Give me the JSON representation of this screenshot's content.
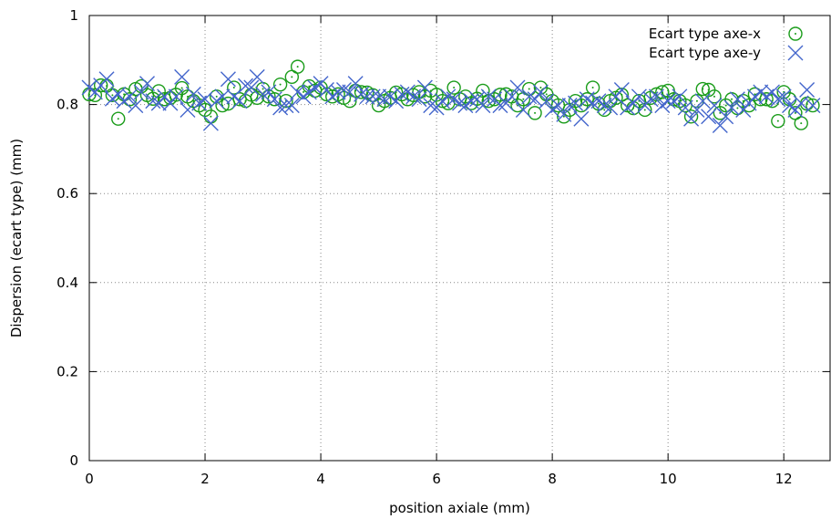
{
  "chart_data": {
    "type": "scatter",
    "xlabel": "position axiale (mm)",
    "ylabel": "Dispersion (ecart type) (mm)",
    "xlim": [
      0,
      12.8
    ],
    "ylim": [
      0,
      1
    ],
    "xticks": [
      "0",
      "2",
      "4",
      "6",
      "8",
      "10",
      "12"
    ],
    "yticks": [
      "0",
      "0.2",
      "0.4",
      "0.6",
      "0.8",
      "1"
    ],
    "grid": true,
    "legend_position": "top-right",
    "series": [
      {
        "name": "Ecart type axe-x",
        "marker": "circle-dot",
        "color": "#1a9c1a",
        "x": [
          0.0,
          0.1,
          0.2,
          0.3,
          0.4,
          0.5,
          0.6,
          0.7,
          0.8,
          0.9,
          1.0,
          1.1,
          1.2,
          1.3,
          1.4,
          1.5,
          1.6,
          1.7,
          1.8,
          1.9,
          2.0,
          2.1,
          2.2,
          2.3,
          2.4,
          2.5,
          2.6,
          2.7,
          2.8,
          2.9,
          3.0,
          3.1,
          3.2,
          3.3,
          3.4,
          3.5,
          3.6,
          3.7,
          3.8,
          3.9,
          4.0,
          4.1,
          4.2,
          4.3,
          4.4,
          4.5,
          4.6,
          4.7,
          4.8,
          4.9,
          5.0,
          5.1,
          5.2,
          5.3,
          5.4,
          5.5,
          5.6,
          5.7,
          5.8,
          5.9,
          6.0,
          6.1,
          6.2,
          6.3,
          6.4,
          6.5,
          6.6,
          6.7,
          6.8,
          6.9,
          7.0,
          7.1,
          7.2,
          7.3,
          7.4,
          7.5,
          7.6,
          7.7,
          7.8,
          7.9,
          8.0,
          8.1,
          8.2,
          8.3,
          8.4,
          8.5,
          8.6,
          8.7,
          8.8,
          8.9,
          9.0,
          9.1,
          9.2,
          9.3,
          9.4,
          9.5,
          9.6,
          9.7,
          9.8,
          9.9,
          10.0,
          10.1,
          10.2,
          10.3,
          10.4,
          10.5,
          10.6,
          10.7,
          10.8,
          10.9,
          11.0,
          11.1,
          11.2,
          11.3,
          11.4,
          11.5,
          11.6,
          11.7,
          11.8,
          11.9,
          12.0,
          12.1,
          12.2,
          12.3,
          12.4,
          12.5
        ],
        "y": [
          0.823,
          0.821,
          0.843,
          0.842,
          0.821,
          0.768,
          0.823,
          0.812,
          0.835,
          0.841,
          0.821,
          0.813,
          0.83,
          0.812,
          0.815,
          0.822,
          0.837,
          0.818,
          0.808,
          0.798,
          0.788,
          0.773,
          0.818,
          0.798,
          0.802,
          0.838,
          0.812,
          0.808,
          0.822,
          0.815,
          0.835,
          0.818,
          0.812,
          0.845,
          0.808,
          0.862,
          0.885,
          0.828,
          0.841,
          0.831,
          0.838,
          0.823,
          0.818,
          0.823,
          0.815,
          0.808,
          0.831,
          0.828,
          0.827,
          0.821,
          0.798,
          0.808,
          0.815,
          0.827,
          0.823,
          0.812,
          0.821,
          0.828,
          0.818,
          0.831,
          0.822,
          0.808,
          0.803,
          0.838,
          0.812,
          0.818,
          0.803,
          0.813,
          0.831,
          0.808,
          0.812,
          0.822,
          0.823,
          0.818,
          0.798,
          0.812,
          0.835,
          0.781,
          0.838,
          0.823,
          0.808,
          0.798,
          0.773,
          0.788,
          0.808,
          0.798,
          0.812,
          0.838,
          0.802,
          0.788,
          0.808,
          0.815,
          0.822,
          0.798,
          0.792,
          0.808,
          0.788,
          0.815,
          0.823,
          0.828,
          0.831,
          0.812,
          0.808,
          0.798,
          0.773,
          0.808,
          0.835,
          0.833,
          0.818,
          0.781,
          0.798,
          0.812,
          0.792,
          0.808,
          0.798,
          0.823,
          0.812,
          0.812,
          0.808,
          0.763,
          0.828,
          0.812,
          0.781,
          0.758,
          0.802,
          0.798
        ]
      },
      {
        "name": "Ecart type axe-y",
        "marker": "cross",
        "color": "#4466cc",
        "x": [
          0.0,
          0.1,
          0.2,
          0.3,
          0.4,
          0.5,
          0.6,
          0.7,
          0.8,
          0.9,
          1.0,
          1.1,
          1.2,
          1.3,
          1.4,
          1.5,
          1.6,
          1.7,
          1.8,
          1.9,
          2.0,
          2.1,
          2.2,
          2.3,
          2.4,
          2.5,
          2.6,
          2.7,
          2.8,
          2.9,
          3.0,
          3.1,
          3.2,
          3.3,
          3.4,
          3.5,
          3.6,
          3.7,
          3.8,
          3.9,
          4.0,
          4.1,
          4.2,
          4.3,
          4.4,
          4.5,
          4.6,
          4.7,
          4.8,
          4.9,
          5.0,
          5.1,
          5.2,
          5.3,
          5.4,
          5.5,
          5.6,
          5.7,
          5.8,
          5.9,
          6.0,
          6.1,
          6.2,
          6.3,
          6.4,
          6.5,
          6.6,
          6.7,
          6.8,
          6.9,
          7.0,
          7.1,
          7.2,
          7.3,
          7.4,
          7.5,
          7.6,
          7.7,
          7.8,
          7.9,
          8.0,
          8.1,
          8.2,
          8.3,
          8.4,
          8.5,
          8.6,
          8.7,
          8.8,
          8.9,
          9.0,
          9.1,
          9.2,
          9.3,
          9.4,
          9.5,
          9.6,
          9.7,
          9.8,
          9.9,
          10.0,
          10.1,
          10.2,
          10.3,
          10.4,
          10.5,
          10.6,
          10.7,
          10.8,
          10.9,
          11.0,
          11.1,
          11.2,
          11.3,
          11.4,
          11.5,
          11.6,
          11.7,
          11.8,
          11.9,
          12.0,
          12.1,
          12.2,
          12.3,
          12.4,
          12.5
        ],
        "y": [
          0.838,
          0.828,
          0.843,
          0.857,
          0.813,
          0.823,
          0.808,
          0.818,
          0.798,
          0.828,
          0.847,
          0.808,
          0.803,
          0.818,
          0.803,
          0.818,
          0.862,
          0.788,
          0.823,
          0.803,
          0.812,
          0.758,
          0.808,
          0.818,
          0.857,
          0.818,
          0.808,
          0.842,
          0.838,
          0.862,
          0.823,
          0.828,
          0.812,
          0.793,
          0.798,
          0.798,
          0.828,
          0.818,
          0.828,
          0.838,
          0.847,
          0.833,
          0.818,
          0.828,
          0.833,
          0.828,
          0.847,
          0.823,
          0.818,
          0.818,
          0.818,
          0.812,
          0.818,
          0.808,
          0.823,
          0.828,
          0.818,
          0.812,
          0.838,
          0.798,
          0.793,
          0.808,
          0.818,
          0.812,
          0.803,
          0.798,
          0.808,
          0.812,
          0.798,
          0.818,
          0.812,
          0.798,
          0.803,
          0.818,
          0.838,
          0.788,
          0.818,
          0.812,
          0.828,
          0.808,
          0.788,
          0.798,
          0.778,
          0.798,
          0.803,
          0.768,
          0.812,
          0.803,
          0.808,
          0.798,
          0.793,
          0.818,
          0.833,
          0.793,
          0.803,
          0.818,
          0.798,
          0.812,
          0.818,
          0.798,
          0.808,
          0.808,
          0.818,
          0.793,
          0.768,
          0.788,
          0.808,
          0.773,
          0.798,
          0.753,
          0.773,
          0.793,
          0.812,
          0.788,
          0.803,
          0.818,
          0.828,
          0.818,
          0.828,
          0.812,
          0.818,
          0.798,
          0.788,
          0.803,
          0.833,
          0.798
        ]
      }
    ]
  }
}
